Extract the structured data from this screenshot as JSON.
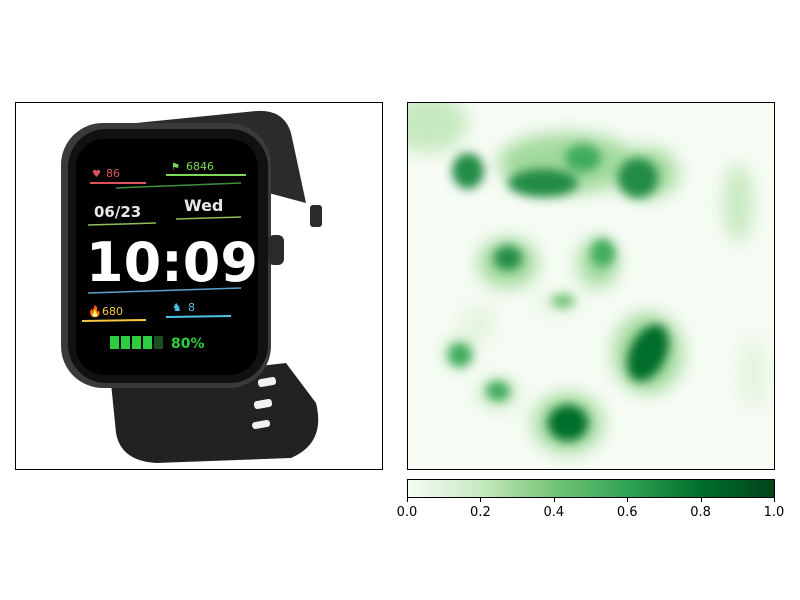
{
  "watch": {
    "heart_rate": "86",
    "steps": "6846",
    "date": "06/23",
    "day": "Wed",
    "time": "10:09",
    "calories": "680",
    "distance": "8",
    "battery": "80%"
  },
  "colorbar": {
    "colormap": "Greens",
    "ticks": [
      "0.0",
      "0.2",
      "0.4",
      "0.6",
      "0.8",
      "1.0"
    ]
  },
  "colors": {
    "heart": "#e0525c",
    "steps": "#7ed957",
    "calories": "#f6c744",
    "distance": "#4fc3e6",
    "battery": "#2ecc40",
    "heat_max": "#00441b"
  }
}
